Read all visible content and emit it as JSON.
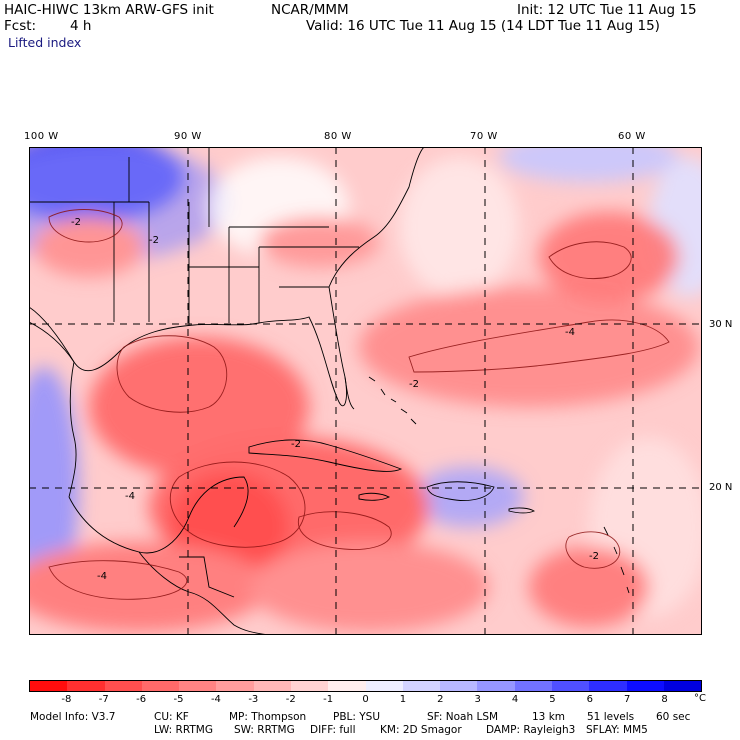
{
  "header": {
    "model": "HAIC-HIWC 13km ARW-GFS init",
    "org": "NCAR/MMM",
    "init": "Init: 12 UTC Tue 11 Aug 15",
    "fcst_label": "Fcst:",
    "fcst_value": "4 h",
    "valid": "Valid: 16 UTC Tue 11 Aug 15 (14 LDT Tue 11 Aug 15)",
    "field": "Lifted index"
  },
  "map": {
    "lon_labels": [
      "100 W",
      "90 W",
      "80 W",
      "70 W",
      "60 W"
    ],
    "lat_labels": [
      "30 N",
      "20 N"
    ],
    "contour_labels": [
      "-2",
      "-4",
      "-2",
      "-4",
      "-2",
      "-2",
      "-2",
      "-4"
    ]
  },
  "colorbar": {
    "labels": [
      "-8",
      "-7",
      "-6",
      "-5",
      "-4",
      "-3",
      "-2",
      "-1",
      "0",
      "1",
      "2",
      "3",
      "4",
      "5",
      "6",
      "7",
      "8"
    ],
    "unit": "°C",
    "colors": [
      "#ff0d0d",
      "#ff3030",
      "#ff4f4f",
      "#ff6a6a",
      "#ff8484",
      "#ff9e9e",
      "#ffb8b8",
      "#ffd3d3",
      "#ffeeee",
      "#eeeeff",
      "#d3d3ff",
      "#b8b8ff",
      "#9696ff",
      "#7272ff",
      "#5050ff",
      "#2e2eff",
      "#0d0dff",
      "#0000e0"
    ]
  },
  "footer": {
    "line1": [
      "Model Info: V3.7",
      "CU: KF",
      "MP: Thompson",
      "PBL: YSU",
      "SF: Noah LSM",
      "13 km",
      "51 levels",
      "60 sec"
    ],
    "line2": [
      "LW: RRTMG",
      "SW: RRTMG",
      "DIFF: full",
      "KM: 2D Smagor",
      "DAMP: Rayleigh3",
      "SFLAY: MM5"
    ]
  }
}
